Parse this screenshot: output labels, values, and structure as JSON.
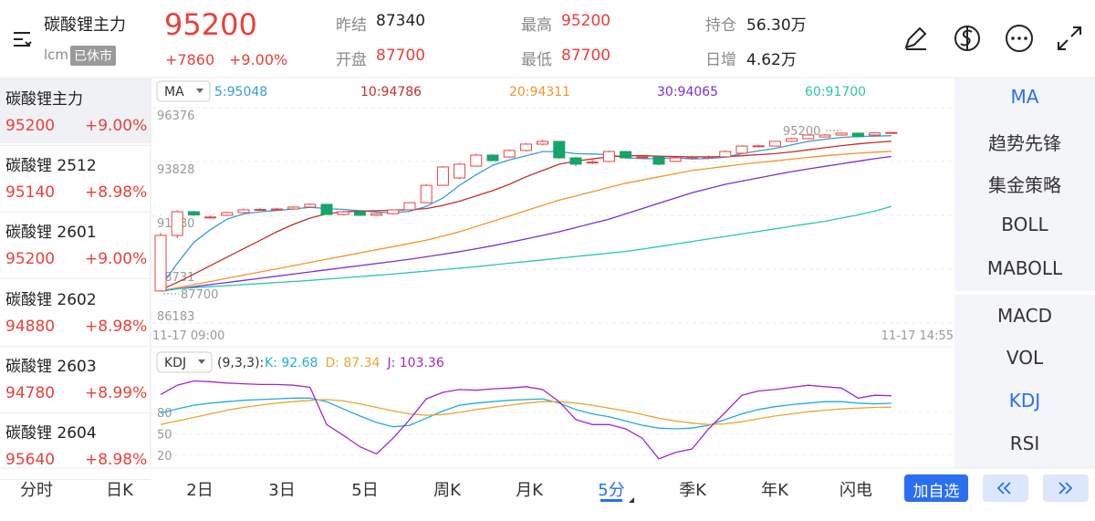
{
  "header": {
    "title": "碳酸锂主力",
    "code": "lcm",
    "status": "已休市",
    "price": "95200",
    "change": "+7860",
    "change_pct": "+9.00%",
    "stats": [
      {
        "label": "昨结",
        "value": "87340"
      },
      {
        "label": "开盘",
        "value": "87700"
      },
      {
        "label": "最高",
        "value": "95200"
      },
      {
        "label": "最低",
        "value": "87700"
      },
      {
        "label": "持仓",
        "value": "56.30万"
      },
      {
        "label": "日增",
        "value": "4.62万"
      }
    ]
  },
  "sidebar": [
    {
      "name": "碳酸锂主力",
      "price": "95200",
      "change": "+9.00%"
    },
    {
      "name": "碳酸锂 2512",
      "price": "95140",
      "change": "+8.98%"
    },
    {
      "name": "碳酸锂 2601",
      "price": "95200",
      "change": "+9.00%"
    },
    {
      "name": "碳酸锂 2602",
      "price": "94880",
      "change": "+8.98%"
    },
    {
      "name": "碳酸锂 2603",
      "price": "94780",
      "change": "+8.99%"
    },
    {
      "name": "碳酸锂 2604",
      "price": "95640",
      "change": "+8.98%"
    }
  ],
  "indicator_menu": {
    "main": [
      "MA",
      "趋势先锋",
      "集金策略",
      "BOLL",
      "MABOLL"
    ],
    "sub": [
      "MACD",
      "VOL",
      "KDJ",
      "RSI"
    ]
  },
  "tabs": [
    "分时",
    "日K",
    "2日",
    "3日",
    "5日",
    "周K",
    "月K",
    "5分",
    "季K",
    "年K",
    "闪电"
  ],
  "add_button": "加自选",
  "chart_data": [
    {
      "type": "candlestick",
      "indicator": "MA",
      "categories": [
        "11-17 09:00",
        null,
        null,
        null,
        null,
        null,
        null,
        null,
        null,
        null,
        null,
        null,
        null,
        null,
        null,
        null,
        null,
        null,
        null,
        null,
        null,
        null,
        null,
        null,
        null,
        null,
        null,
        null,
        null,
        null,
        null,
        null,
        null,
        null,
        null,
        null,
        null,
        null,
        null,
        null,
        null,
        null,
        null,
        null,
        "11-17 14:55"
      ],
      "open": [
        87700,
        90330,
        91450,
        91200,
        91280,
        91410,
        91540,
        91560,
        91580,
        91670,
        91800,
        91320,
        91450,
        91280,
        91360,
        91540,
        91880,
        92700,
        93050,
        93610,
        94130,
        94040,
        94350,
        94650,
        94780,
        94000,
        93780,
        93830,
        94300,
        94000,
        94040,
        93830,
        94000,
        94040,
        94050,
        94220,
        94560,
        94560,
        94780,
        94910,
        94990,
        95080,
        95170,
        95080,
        95180
      ],
      "high": [
        90450,
        91520,
        91500,
        91280,
        91450,
        91600,
        91620,
        91640,
        91700,
        91850,
        91820,
        91500,
        91480,
        91400,
        91560,
        91900,
        92750,
        93620,
        93760,
        94200,
        94180,
        94400,
        94700,
        94850,
        94800,
        94050,
        93900,
        94350,
        94330,
        94100,
        94060,
        94050,
        94100,
        94120,
        94350,
        94600,
        94620,
        94800,
        94950,
        95100,
        95120,
        95200,
        95200,
        95200,
        95200
      ],
      "low": [
        87700,
        90200,
        91250,
        91150,
        91250,
        91380,
        91500,
        91520,
        91540,
        91640,
        91300,
        91280,
        91250,
        91250,
        91330,
        91500,
        91850,
        92680,
        93000,
        93580,
        93850,
        94000,
        94300,
        94600,
        93950,
        93600,
        93700,
        93800,
        93950,
        93980,
        93650,
        93800,
        93980,
        94000,
        94020,
        94200,
        94520,
        94540,
        94750,
        94880,
        94970,
        95050,
        94980,
        95050,
        95150
      ],
      "close": [
        90330,
        91450,
        91300,
        91200,
        91410,
        91540,
        91560,
        91580,
        91670,
        91800,
        91320,
        91450,
        91280,
        91360,
        91540,
        91880,
        92700,
        93570,
        93700,
        94130,
        93870,
        94350,
        94650,
        94780,
        94000,
        93700,
        93800,
        94300,
        94000,
        94040,
        93700,
        94000,
        94040,
        94050,
        94300,
        94560,
        94570,
        94780,
        94910,
        95080,
        95080,
        95170,
        95000,
        95180,
        95200
      ],
      "up_color": "#e8413c",
      "down_color": "#15a46a",
      "ylim": [
        86183,
        96376
      ],
      "yticks": [
        86183,
        88731,
        91280,
        93828,
        96376
      ],
      "grid": true,
      "series": [
        {
          "name": "5:95048",
          "color": "#3a9ad9",
          "values": [
            87900,
            89000,
            90000,
            90600,
            91100,
            91350,
            91450,
            91510,
            91580,
            91660,
            91600,
            91560,
            91500,
            91440,
            91400,
            91470,
            91700,
            92100,
            92700,
            93200,
            93650,
            93900,
            94100,
            94300,
            94300,
            94200,
            94180,
            94150,
            94000,
            93960,
            93960,
            94010,
            93950,
            93970,
            94030,
            94200,
            94330,
            94450,
            94620,
            94780,
            94880,
            94970,
            95010,
            95030,
            95048
          ]
        },
        {
          "name": "10:94786",
          "color": "#c0302a",
          "values": [
            87750,
            88100,
            88500,
            88900,
            89300,
            89700,
            90100,
            90500,
            90850,
            91150,
            91350,
            91450,
            91480,
            91500,
            91520,
            91550,
            91600,
            91750,
            91950,
            92200,
            92450,
            92750,
            93100,
            93400,
            93700,
            93850,
            93950,
            94050,
            94100,
            94100,
            94080,
            94060,
            94050,
            94050,
            94060,
            94100,
            94150,
            94200,
            94280,
            94380,
            94480,
            94580,
            94660,
            94730,
            94786
          ]
        },
        {
          "name": "20:94311",
          "color": "#f0962a",
          "values": [
            87700,
            87850,
            88000,
            88150,
            88300,
            88450,
            88600,
            88750,
            88900,
            89050,
            89200,
            89350,
            89500,
            89650,
            89800,
            89950,
            90100,
            90300,
            90500,
            90750,
            91000,
            91250,
            91500,
            91750,
            92000,
            92200,
            92400,
            92600,
            92800,
            92950,
            93100,
            93250,
            93400,
            93500,
            93600,
            93700,
            93780,
            93860,
            93940,
            94020,
            94100,
            94160,
            94220,
            94270,
            94311
          ]
        },
        {
          "name": "30:94065",
          "color": "#7a2fd6",
          "values": [
            87700,
            87800,
            87900,
            88000,
            88100,
            88200,
            88300,
            88400,
            88500,
            88600,
            88700,
            88800,
            88900,
            89000,
            89100,
            89200,
            89320,
            89440,
            89560,
            89700,
            89840,
            90000,
            90160,
            90330,
            90500,
            90700,
            90900,
            91100,
            91350,
            91600,
            91850,
            92100,
            92350,
            92550,
            92750,
            92900,
            93050,
            93200,
            93350,
            93480,
            93600,
            93720,
            93840,
            93960,
            94065
          ]
        },
        {
          "name": "60:91700",
          "color": "#2cc4b0",
          "values": [
            87750,
            87800,
            87850,
            87900,
            87950,
            88000,
            88050,
            88100,
            88150,
            88200,
            88260,
            88320,
            88380,
            88440,
            88500,
            88570,
            88640,
            88710,
            88780,
            88850,
            88930,
            89010,
            89090,
            89170,
            89250,
            89330,
            89410,
            89490,
            89570,
            89680,
            89800,
            89920,
            90040,
            90160,
            90280,
            90400,
            90520,
            90640,
            90760,
            90880,
            91000,
            91150,
            91300,
            91480,
            91700
          ]
        }
      ],
      "annotations": [
        {
          "text": "95200"
        },
        {
          "text": "87700"
        }
      ]
    },
    {
      "type": "line",
      "indicator": "KDJ",
      "params": "(9,3,3):",
      "ylim": [
        6,
        131
      ],
      "yticks": [
        20,
        50,
        80
      ],
      "series": [
        {
          "name": "K: 92.68",
          "color": "#1eaed8",
          "values": [
            79,
            85,
            90,
            93,
            95,
            97,
            98,
            99,
            100,
            100,
            95,
            85,
            75,
            66,
            60,
            62,
            72,
            82,
            90,
            93,
            95,
            97,
            98,
            99,
            93,
            84,
            78,
            74,
            68,
            62,
            58,
            57,
            58,
            62,
            70,
            78,
            84,
            88,
            91,
            93,
            95,
            95,
            93,
            92,
            92.68
          ]
        },
        {
          "name": "D: 87.34",
          "color": "#eba52f",
          "values": [
            63,
            68,
            73,
            78,
            83,
            87,
            90,
            93,
            95,
            97,
            98,
            96,
            92,
            87,
            82,
            78,
            76,
            77,
            80,
            84,
            87,
            90,
            93,
            95,
            95,
            93,
            90,
            86,
            82,
            77,
            72,
            68,
            65,
            63,
            64,
            67,
            71,
            75,
            78,
            81,
            83,
            85,
            86,
            87,
            87.34
          ]
        },
        {
          "name": "J: 103.36",
          "color": "#a326cf",
          "values": [
            105,
            118,
            124,
            123,
            121,
            120,
            119,
            119,
            118,
            115,
            63,
            48,
            32,
            22,
            44,
            70,
            99,
            108,
            112,
            111,
            113,
            114,
            116,
            112,
            95,
            70,
            63,
            63,
            57,
            44,
            15,
            24,
            29,
            57,
            80,
            104,
            110,
            112,
            115,
            118,
            116,
            114,
            100,
            104,
            103.36
          ]
        }
      ]
    }
  ]
}
